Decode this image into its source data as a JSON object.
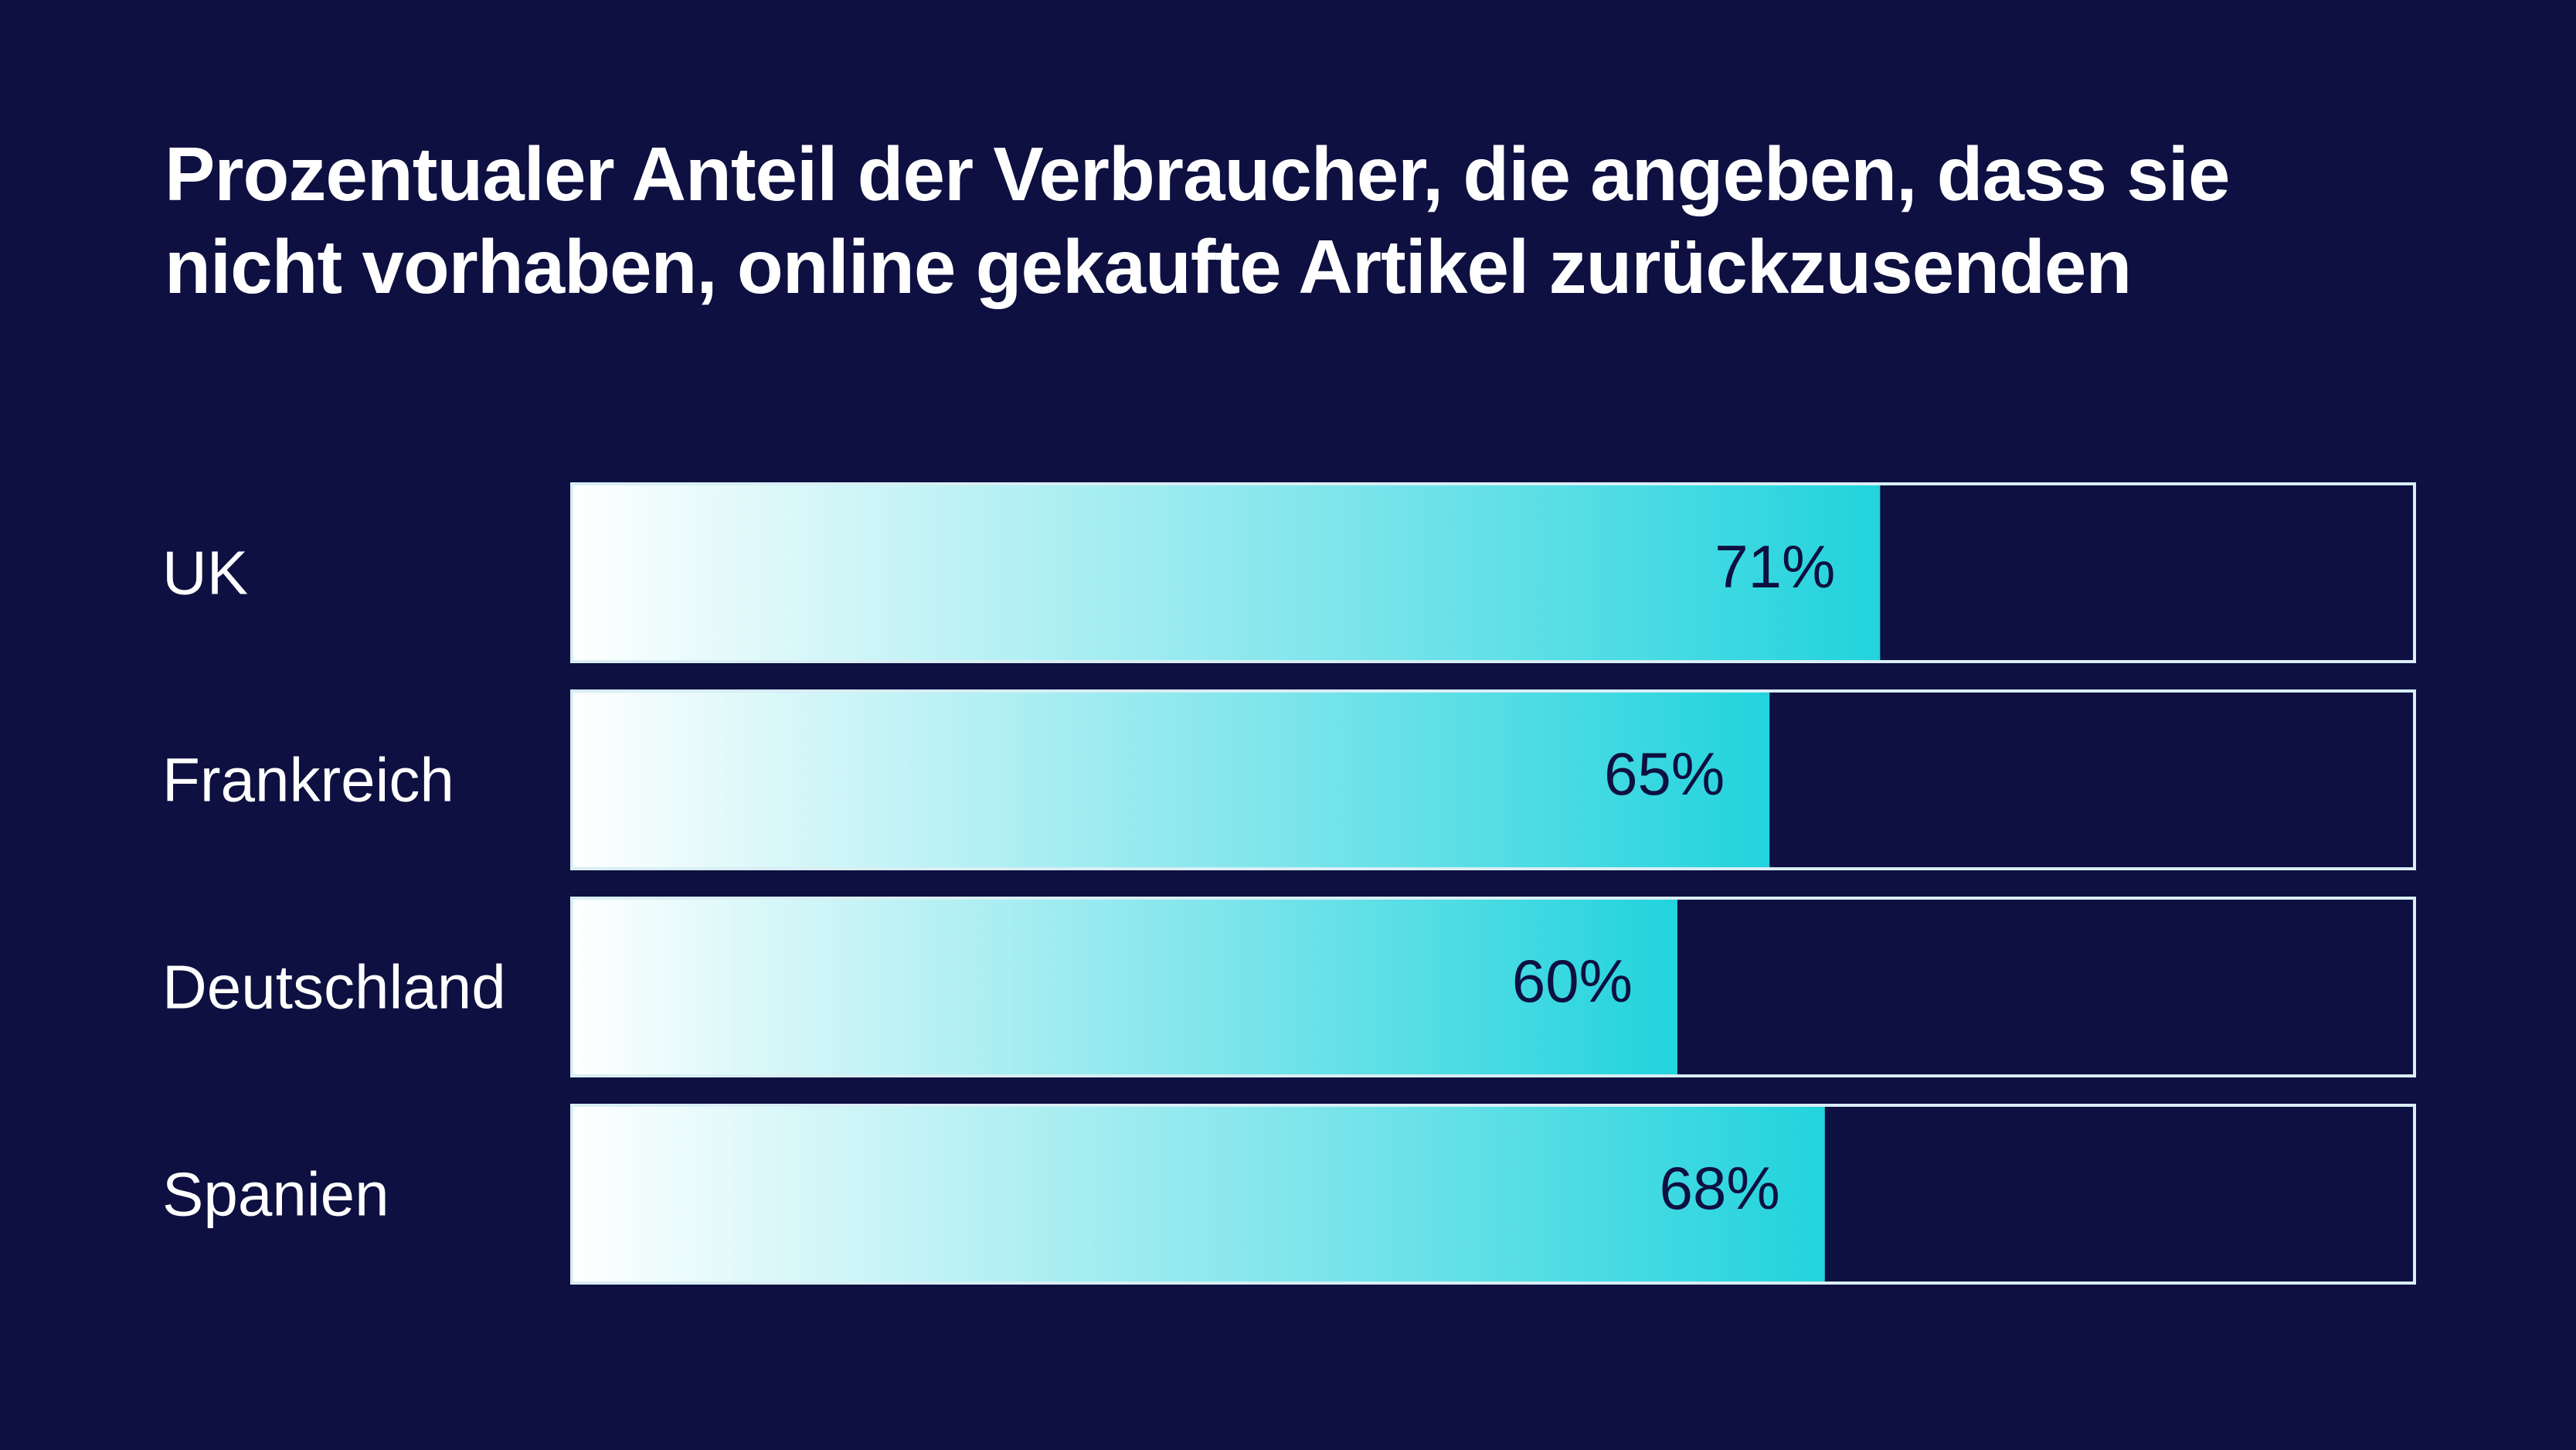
{
  "chart_data": {
    "type": "bar",
    "orientation": "horizontal",
    "title": "Prozentualer Anteil der Verbraucher, die angeben, dass sie nicht vorhaben, online gekaufte Artikel zurückzusenden",
    "categories": [
      "UK",
      "Frankreich",
      "Deutschland",
      "Spanien"
    ],
    "values": [
      71,
      65,
      60,
      68
    ],
    "value_labels": [
      "71%",
      "65%",
      "60%",
      "68%"
    ],
    "xlim": [
      0,
      100
    ],
    "unit": "%",
    "grid": false,
    "legend": "none"
  },
  "colors": {
    "background": "#0d1040",
    "bar_gradient_start": "#ffffff",
    "bar_gradient_end": "#22d3dd",
    "frame": "#d8eef4",
    "text": "#ffffff",
    "value_text": "#0d1040"
  }
}
